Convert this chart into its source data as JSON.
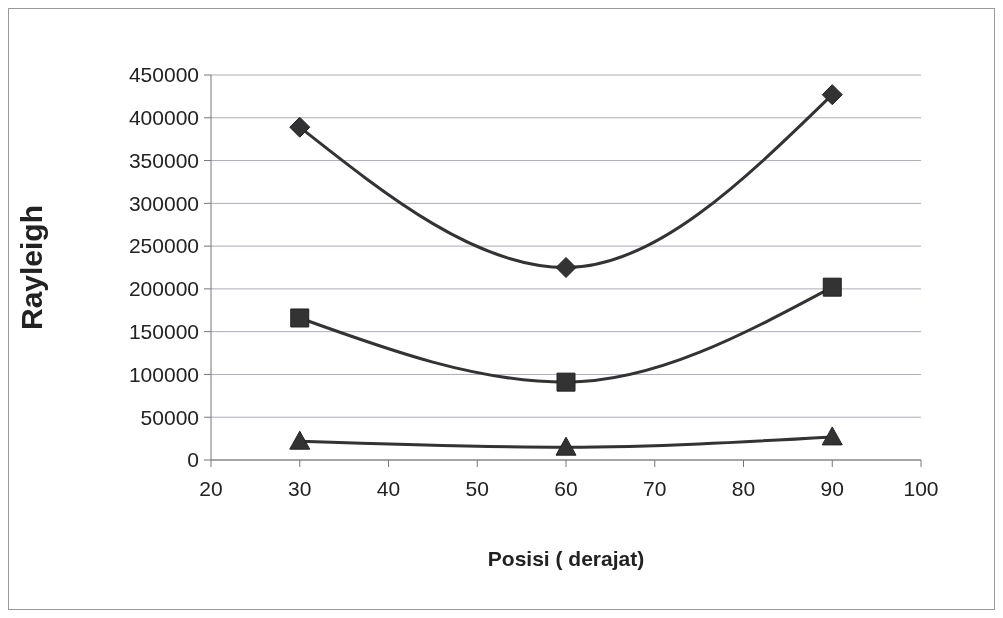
{
  "chart_data": {
    "type": "line",
    "xlabel": "Posisi ( derajat)",
    "ylabel": "Rayleigh",
    "x": [
      30,
      60,
      90
    ],
    "series": [
      {
        "color": "#333333",
        "marker": "diamond",
        "values": [
          389000,
          225000,
          427000
        ]
      },
      {
        "color": "#333333",
        "marker": "square",
        "values": [
          166000,
          91000,
          202000
        ]
      },
      {
        "color": "#333333",
        "marker": "triangle",
        "values": [
          22000,
          15000,
          27000
        ]
      }
    ],
    "xlim": [
      20,
      100
    ],
    "xticks": [
      20,
      30,
      40,
      50,
      60,
      70,
      80,
      90,
      100
    ],
    "ylim": [
      0,
      450000
    ],
    "yticks": [
      0,
      50000,
      100000,
      150000,
      200000,
      250000,
      300000,
      350000,
      400000,
      450000
    ],
    "grid": "y"
  }
}
